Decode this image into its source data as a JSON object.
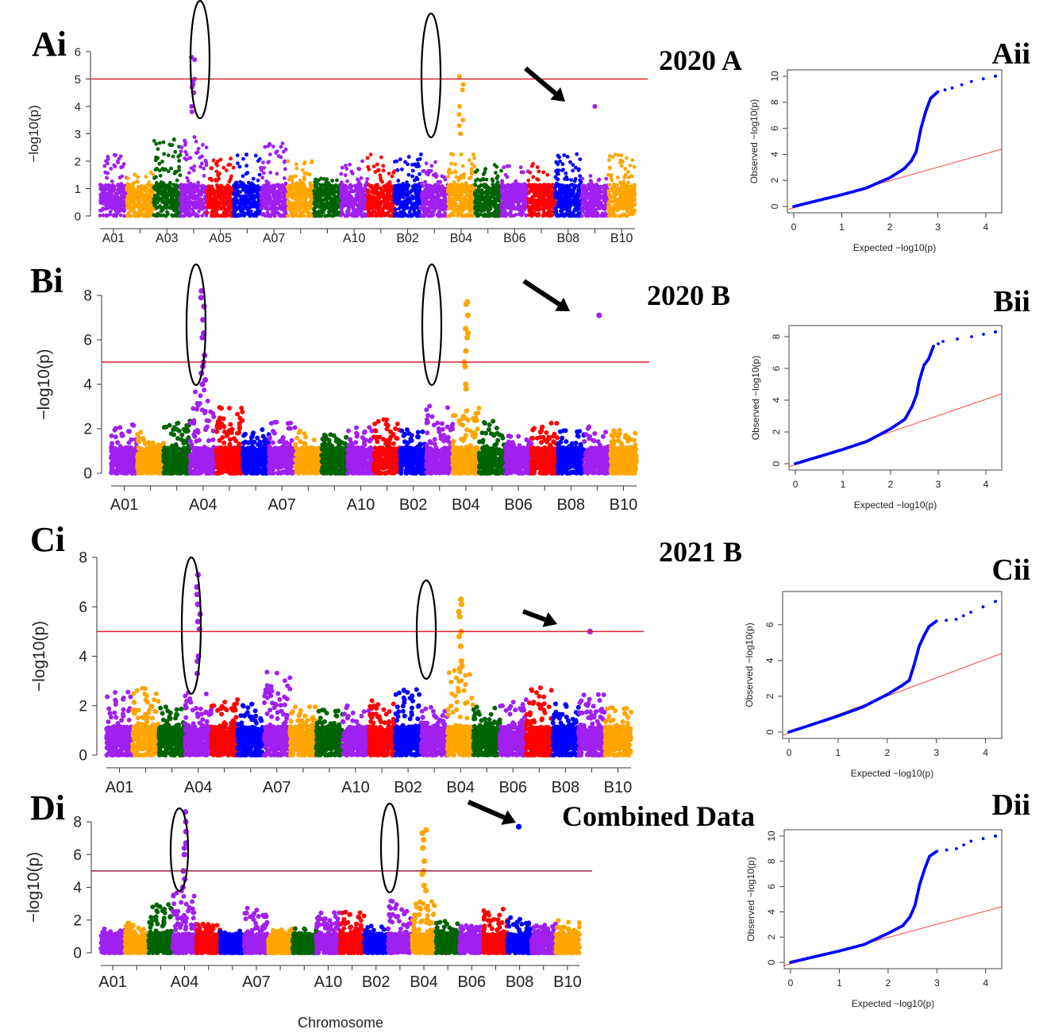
{
  "figure": {
    "xlabel": "Chromosome",
    "colors": {
      "purple": "#a020f0",
      "orange": "#ffa500",
      "green": "#006400",
      "red": "#ff0000",
      "blue": "#0000ff",
      "threshold": "#dd2233",
      "qq_line": "#ff4444"
    }
  },
  "chart_data": [
    {
      "type": "scatter",
      "panel": "Ai",
      "title": "2020 A",
      "ylabel": "−log10(p)",
      "xlabel": "",
      "ylim": [
        0,
        6
      ],
      "yticks": [
        0,
        1,
        2,
        3,
        4,
        5,
        6
      ],
      "threshold": 5,
      "tick_labels": [
        "A01",
        "A03",
        "A05",
        "A07",
        "A10",
        "B02",
        "B04",
        "B06",
        "B08",
        "B10"
      ],
      "chromosomes": [
        "A01",
        "A02",
        "A03",
        "A04",
        "A05",
        "A06",
        "A07",
        "A08",
        "A09",
        "A10",
        "B01",
        "B02",
        "B03",
        "B04",
        "B05",
        "B06",
        "B07",
        "B08",
        "B09",
        "B10"
      ],
      "peaks": [
        {
          "chrom": "A04",
          "values": [
            5.8,
            5.7,
            5.0,
            4.9,
            4.8,
            4.7,
            4.5,
            4.0,
            3.8
          ]
        },
        {
          "chrom": "B04",
          "values": [
            5.1,
            4.8,
            4.6,
            4.0,
            3.7,
            3.5,
            3.3,
            3.0
          ]
        },
        {
          "chrom": "B09",
          "values": [
            4.0
          ]
        }
      ],
      "base_max": [
        2.4,
        1.6,
        2.9,
        2.9,
        2.1,
        2.3,
        2.7,
        2.2,
        1.4,
        2.1,
        2.3,
        2.3,
        2.1,
        2.3,
        1.9,
        1.9,
        2.0,
        2.3,
        1.5,
        2.3
      ]
    },
    {
      "type": "scatter",
      "panel": "Bi",
      "title": "2020 B",
      "ylabel": "−log10(p)",
      "xlabel": "",
      "ylim": [
        0,
        8
      ],
      "yticks": [
        0,
        2,
        4,
        6,
        8
      ],
      "threshold": 5,
      "tick_labels": [
        "A01",
        "A04",
        "A07",
        "A10",
        "B02",
        "B04",
        "B06",
        "B08",
        "B10"
      ],
      "chromosomes": [
        "A01",
        "A02",
        "A03",
        "A04",
        "A05",
        "A06",
        "A07",
        "A08",
        "A09",
        "A10",
        "B01",
        "B02",
        "B03",
        "B04",
        "B05",
        "B06",
        "B07",
        "B08",
        "B09",
        "B10"
      ],
      "peaks": [
        {
          "chrom": "A04",
          "values": [
            8.2,
            7.9,
            7.5,
            6.9,
            6.3,
            6.1,
            5.3,
            5.0,
            4.8,
            4.5,
            4.2,
            4.0
          ]
        },
        {
          "chrom": "B04",
          "values": [
            7.7,
            7.6,
            7.1,
            6.5,
            6.3,
            6.1,
            5.5,
            5.0,
            4.8,
            4.0,
            3.8
          ]
        },
        {
          "chrom": "B09",
          "values": [
            7.1
          ]
        }
      ],
      "base_max": [
        2.3,
        1.9,
        2.4,
        4.0,
        3.0,
        2.0,
        2.4,
        2.0,
        1.8,
        2.1,
        2.5,
        2.0,
        3.1,
        3.0,
        2.5,
        1.7,
        2.3,
        2.0,
        2.2,
        2.0
      ]
    },
    {
      "type": "scatter",
      "panel": "Ci",
      "title": "2021 B",
      "ylabel": "−log10(p)",
      "xlabel": "",
      "ylim": [
        0,
        8
      ],
      "yticks": [
        0,
        2,
        4,
        6,
        8
      ],
      "threshold": 5,
      "tick_labels": [
        "A01",
        "A04",
        "A07",
        "A10",
        "B02",
        "B04",
        "B06",
        "B08",
        "B10"
      ],
      "chromosomes": [
        "A01",
        "A02",
        "A03",
        "A04",
        "A05",
        "A06",
        "A07",
        "A08",
        "A09",
        "A10",
        "B01",
        "B02",
        "B03",
        "B04",
        "B05",
        "B06",
        "B07",
        "B08",
        "B09",
        "B10"
      ],
      "peaks": [
        {
          "chrom": "A04",
          "values": [
            7.3,
            6.8,
            6.5,
            6.1,
            5.7,
            5.4,
            5.1,
            4.0,
            3.8,
            3.3
          ]
        },
        {
          "chrom": "B04",
          "values": [
            6.3,
            6.1,
            5.8,
            5.6,
            5.0,
            4.8,
            4.4,
            3.8,
            3.6,
            3.5
          ]
        },
        {
          "chrom": "B09",
          "values": [
            5.0
          ]
        }
      ],
      "base_max": [
        2.6,
        2.8,
        2.0,
        2.6,
        2.3,
        2.2,
        3.4,
        2.0,
        1.9,
        2.1,
        2.3,
        2.7,
        2.0,
        3.5,
        2.0,
        2.3,
        2.9,
        2.1,
        2.5,
        2.0
      ]
    },
    {
      "type": "scatter",
      "panel": "Di",
      "title": "Combined Data",
      "ylabel": "−log10(p)",
      "xlabel": "Chromosome",
      "ylim": [
        0,
        8
      ],
      "yticks": [
        0,
        2,
        4,
        6,
        8
      ],
      "threshold": 5,
      "tick_labels": [
        "A01",
        "A04",
        "A07",
        "A10",
        "B02",
        "B04",
        "B06",
        "B08",
        "B10"
      ],
      "chromosomes": [
        "A01",
        "A02",
        "A03",
        "A04",
        "A05",
        "A06",
        "A07",
        "A08",
        "A09",
        "A10",
        "B01",
        "B02",
        "B03",
        "B04",
        "B05",
        "B06",
        "B07",
        "B08",
        "B09",
        "B10"
      ],
      "peaks": [
        {
          "chrom": "A04",
          "values": [
            8.6,
            8.0,
            7.4,
            6.7,
            6.4,
            6.0,
            5.0,
            4.5,
            4.0
          ]
        },
        {
          "chrom": "B04",
          "values": [
            7.5,
            7.3,
            6.9,
            6.4,
            5.6,
            5.0,
            4.8,
            4.1,
            3.8
          ]
        },
        {
          "chrom": "B08",
          "values": [
            7.7
          ]
        }
      ],
      "base_max": [
        1.6,
        1.9,
        3.0,
        3.9,
        1.8,
        1.4,
        2.8,
        1.5,
        1.5,
        2.5,
        2.6,
        1.7,
        3.3,
        3.2,
        2.0,
        1.7,
        2.8,
        2.2,
        1.8,
        2.0
      ]
    },
    {
      "type": "scatter",
      "panel": "Aii",
      "title": "",
      "xlabel": "Expected  −log10(p)",
      "ylabel": "Observed  −log10(p)",
      "xlim": [
        0,
        4.2
      ],
      "ylim": [
        0,
        10
      ],
      "xticks": [
        0,
        1,
        2,
        3,
        4
      ],
      "yticks": [
        0,
        2,
        4,
        6,
        8,
        10
      ],
      "observed_curve": [
        [
          0,
          0
        ],
        [
          1,
          0.9
        ],
        [
          1.5,
          1.4
        ],
        [
          2.0,
          2.2
        ],
        [
          2.3,
          2.9
        ],
        [
          2.45,
          3.5
        ],
        [
          2.55,
          4.2
        ],
        [
          2.65,
          6.0
        ],
        [
          2.75,
          7.3
        ],
        [
          2.85,
          8.3
        ],
        [
          3.0,
          8.8
        ],
        [
          3.3,
          9.1
        ],
        [
          3.7,
          9.6
        ],
        [
          4.2,
          10.0
        ]
      ],
      "expected_line": [
        [
          0,
          0
        ],
        [
          4.2,
          4.4
        ]
      ]
    },
    {
      "type": "scatter",
      "panel": "Bii",
      "title": "",
      "xlabel": "Expected  −log10(p)",
      "ylabel": "Observed  −log10(p)",
      "xlim": [
        0,
        4.2
      ],
      "ylim": [
        0,
        8.3
      ],
      "xticks": [
        0,
        1,
        2,
        3,
        4
      ],
      "yticks": [
        0,
        2,
        4,
        6,
        8
      ],
      "observed_curve": [
        [
          0,
          0
        ],
        [
          1,
          0.9
        ],
        [
          1.5,
          1.4
        ],
        [
          2.0,
          2.2
        ],
        [
          2.3,
          2.8
        ],
        [
          2.45,
          3.6
        ],
        [
          2.55,
          4.4
        ],
        [
          2.6,
          5.2
        ],
        [
          2.7,
          6.2
        ],
        [
          2.8,
          6.6
        ],
        [
          2.9,
          7.4
        ],
        [
          3.1,
          7.7
        ],
        [
          3.7,
          8.0
        ],
        [
          4.2,
          8.3
        ]
      ],
      "expected_line": [
        [
          0,
          0
        ],
        [
          4.2,
          4.4
        ]
      ]
    },
    {
      "type": "scatter",
      "panel": "Cii",
      "title": "",
      "xlabel": "Expected  −log10(p)",
      "ylabel": "Observed  −log10(p)",
      "xlim": [
        0,
        4.2
      ],
      "ylim": [
        0,
        7.5
      ],
      "xticks": [
        0,
        1,
        2,
        3,
        4
      ],
      "yticks": [
        0,
        2,
        4,
        6
      ],
      "observed_curve": [
        [
          0,
          0
        ],
        [
          1,
          0.9
        ],
        [
          1.5,
          1.4
        ],
        [
          2.0,
          2.1
        ],
        [
          2.3,
          2.6
        ],
        [
          2.45,
          2.9
        ],
        [
          2.55,
          3.8
        ],
        [
          2.65,
          4.8
        ],
        [
          2.75,
          5.4
        ],
        [
          2.85,
          5.9
        ],
        [
          3.0,
          6.2
        ],
        [
          3.4,
          6.3
        ],
        [
          3.7,
          6.7
        ],
        [
          4.2,
          7.3
        ]
      ],
      "expected_line": [
        [
          0,
          0
        ],
        [
          4.2,
          4.4
        ]
      ]
    },
    {
      "type": "scatter",
      "panel": "Dii",
      "title": "",
      "xlabel": "Expected  −log10(p)",
      "ylabel": "Observed  −log10(p)",
      "xlim": [
        0,
        4.2
      ],
      "ylim": [
        0,
        10
      ],
      "xticks": [
        0,
        1,
        2,
        3,
        4
      ],
      "yticks": [
        0,
        2,
        4,
        6,
        8,
        10
      ],
      "observed_curve": [
        [
          0,
          0
        ],
        [
          1,
          0.9
        ],
        [
          1.5,
          1.4
        ],
        [
          2.0,
          2.3
        ],
        [
          2.3,
          2.9
        ],
        [
          2.45,
          3.6
        ],
        [
          2.55,
          4.5
        ],
        [
          2.65,
          6.2
        ],
        [
          2.75,
          7.4
        ],
        [
          2.85,
          8.4
        ],
        [
          3.0,
          8.8
        ],
        [
          3.4,
          9.0
        ],
        [
          3.7,
          9.6
        ],
        [
          4.2,
          10.0
        ]
      ],
      "expected_line": [
        [
          0,
          0
        ],
        [
          4.2,
          4.4
        ]
      ]
    }
  ]
}
